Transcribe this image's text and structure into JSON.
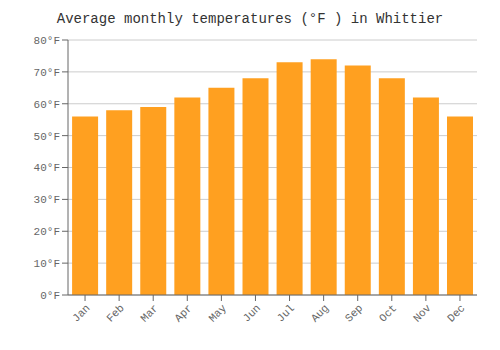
{
  "chart_data": {
    "type": "bar",
    "title": "Average monthly temperatures (°F ) in Whittier",
    "categories": [
      "Jan",
      "Feb",
      "Mar",
      "Apr",
      "May",
      "Jun",
      "Jul",
      "Aug",
      "Sep",
      "Oct",
      "Nov",
      "Dec"
    ],
    "values": [
      56,
      58,
      59,
      62,
      65,
      68,
      73,
      74,
      72,
      68,
      62,
      56
    ],
    "color": "#FFA020",
    "ylim": [
      0,
      80
    ],
    "yticks": [
      {
        "value": 0,
        "label": "0°F"
      },
      {
        "value": 10,
        "label": "10°F"
      },
      {
        "value": 20,
        "label": "20°F"
      },
      {
        "value": 30,
        "label": "30°F"
      },
      {
        "value": 40,
        "label": "40°F"
      },
      {
        "value": 50,
        "label": "50°F"
      },
      {
        "value": 60,
        "label": "60°F"
      },
      {
        "value": 70,
        "label": "70°F"
      },
      {
        "value": 80,
        "label": "80°F"
      }
    ],
    "grid": true
  }
}
